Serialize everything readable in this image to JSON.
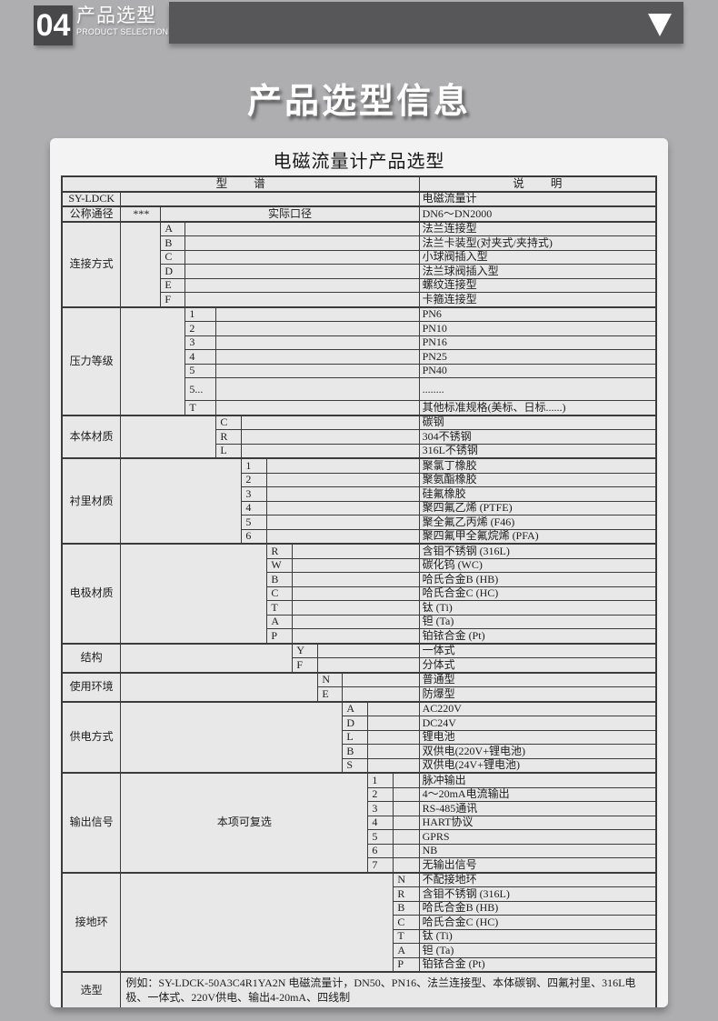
{
  "palette": {
    "page_bg": "#aeaeb0",
    "banner_bg": "#57575a",
    "banner_tile_bg": "#48484a",
    "card_bg": "#f3f3f3",
    "cell_bg": "#e8e8e8",
    "border": "#3b3b3b",
    "text": "#1d1d1d",
    "white": "#ffffff"
  },
  "icons": {
    "header_arrow": "triangle-down"
  },
  "page_header": {
    "section_number": "04",
    "section_title_cn": "产品选型",
    "section_title_en": "PRODUCT SELECTION"
  },
  "main_title": "产品选型信息",
  "table": {
    "title": "电磁流量计产品选型",
    "header": {
      "model_spectrum": "型 谱",
      "description": "说 明"
    },
    "groups": [
      {
        "type": "model",
        "label": "SY-LDCK",
        "desc": "电磁流量计"
      },
      {
        "label": "公称通径",
        "level": 1,
        "mid_text": "实际口径",
        "items": [
          {
            "code": "***",
            "desc": "DN6～DN2000"
          }
        ]
      },
      {
        "label": "连接方式",
        "level": 2,
        "items": [
          {
            "code": "A",
            "desc": "法兰连接型"
          },
          {
            "code": "B",
            "desc": "法兰卡装型(对夹式/夹持式)"
          },
          {
            "code": "C",
            "desc": "小球阀插入型"
          },
          {
            "code": "D",
            "desc": "法兰球阀插入型"
          },
          {
            "code": "E",
            "desc": "螺纹连接型"
          },
          {
            "code": "F",
            "desc": "卡箍连接型"
          }
        ]
      },
      {
        "label": "压力等级",
        "level": 3,
        "items": [
          {
            "code": "1",
            "desc": "PN6"
          },
          {
            "code": "2",
            "desc": "PN10"
          },
          {
            "code": "3",
            "desc": "PN16"
          },
          {
            "code": "4",
            "desc": "PN25"
          },
          {
            "code": "5",
            "desc": "PN40"
          },
          {
            "code": "5...",
            "desc": "........",
            "tall": true
          },
          {
            "code": "T",
            "desc": "其他标准规格(美标、日标......)"
          }
        ]
      },
      {
        "label": "本体材质",
        "level": 4,
        "items": [
          {
            "code": "C",
            "desc": "碳钢"
          },
          {
            "code": "R",
            "desc": "304不锈钢"
          },
          {
            "code": "L",
            "desc": "316L不锈钢"
          }
        ]
      },
      {
        "label": "衬里材质",
        "level": 5,
        "items": [
          {
            "code": "1",
            "desc": "聚氯丁橡胶"
          },
          {
            "code": "2",
            "desc": "聚氨酯橡胶"
          },
          {
            "code": "3",
            "desc": "硅氟橡胶"
          },
          {
            "code": "4",
            "desc": "聚四氟乙烯 (PTFE)"
          },
          {
            "code": "5",
            "desc": "聚全氟乙丙烯 (F46)"
          },
          {
            "code": "6",
            "desc": "聚四氟甲全氟烷烯 (PFA)"
          }
        ]
      },
      {
        "label": "电极材质",
        "level": 6,
        "items": [
          {
            "code": "R",
            "desc": "含钼不锈钢 (316L)"
          },
          {
            "code": "W",
            "desc": "碳化钨 (WC)"
          },
          {
            "code": "B",
            "desc": "哈氏合金B (HB)"
          },
          {
            "code": "C",
            "desc": "哈氏合金C (HC)"
          },
          {
            "code": "T",
            "desc": "钛 (Ti)"
          },
          {
            "code": "A",
            "desc": "钽 (Ta)"
          },
          {
            "code": "P",
            "desc": "铂铱合金 (Pt)"
          }
        ]
      },
      {
        "label": "结构",
        "level": 7,
        "items": [
          {
            "code": "Y",
            "desc": "一体式"
          },
          {
            "code": "F",
            "desc": "分体式"
          }
        ]
      },
      {
        "label": "使用环境",
        "level": 8,
        "items": [
          {
            "code": "N",
            "desc": "普通型"
          },
          {
            "code": "E",
            "desc": "防爆型"
          }
        ]
      },
      {
        "label": "供电方式",
        "level": 9,
        "items": [
          {
            "code": "A",
            "desc": "AC220V"
          },
          {
            "code": "D",
            "desc": "DC24V"
          },
          {
            "code": "L",
            "desc": "锂电池"
          },
          {
            "code": "B",
            "desc": "双供电(220V+锂电池)"
          },
          {
            "code": "S",
            "desc": "双供电(24V+锂电池)"
          }
        ]
      },
      {
        "label": "输出信号",
        "level": 10,
        "note": "本项可复选",
        "items": [
          {
            "code": "1",
            "desc": "脉冲输出"
          },
          {
            "code": "2",
            "desc": "4～20mA电流输出"
          },
          {
            "code": "3",
            "desc": "RS-485通讯"
          },
          {
            "code": "4",
            "desc": "HART协议"
          },
          {
            "code": "5",
            "desc": "GPRS"
          },
          {
            "code": "6",
            "desc": "NB"
          },
          {
            "code": "7",
            "desc": "无输出信号"
          }
        ]
      },
      {
        "label": "接地环",
        "level": 11,
        "items": [
          {
            "code": "N",
            "desc": "不配接地环"
          },
          {
            "code": "R",
            "desc": "含钼不锈钢 (316L)"
          },
          {
            "code": "B",
            "desc": "哈氏合金B (HB)"
          },
          {
            "code": "C",
            "desc": "哈氏合金C (HC)"
          },
          {
            "code": "T",
            "desc": "钛 (Ti)"
          },
          {
            "code": "A",
            "desc": "钽 (Ta)"
          },
          {
            "code": "P",
            "desc": "铂铱合金 (Pt)"
          }
        ]
      },
      {
        "type": "example",
        "label": "选型",
        "desc": "例如：SY-LDCK-50A3C4R1YA2N 电磁流量计，DN50、PN16、法兰连接型、本体碳钢、四氟衬里、316L电极、一体式、220V供电、输出4-20mA、四线制"
      }
    ]
  }
}
